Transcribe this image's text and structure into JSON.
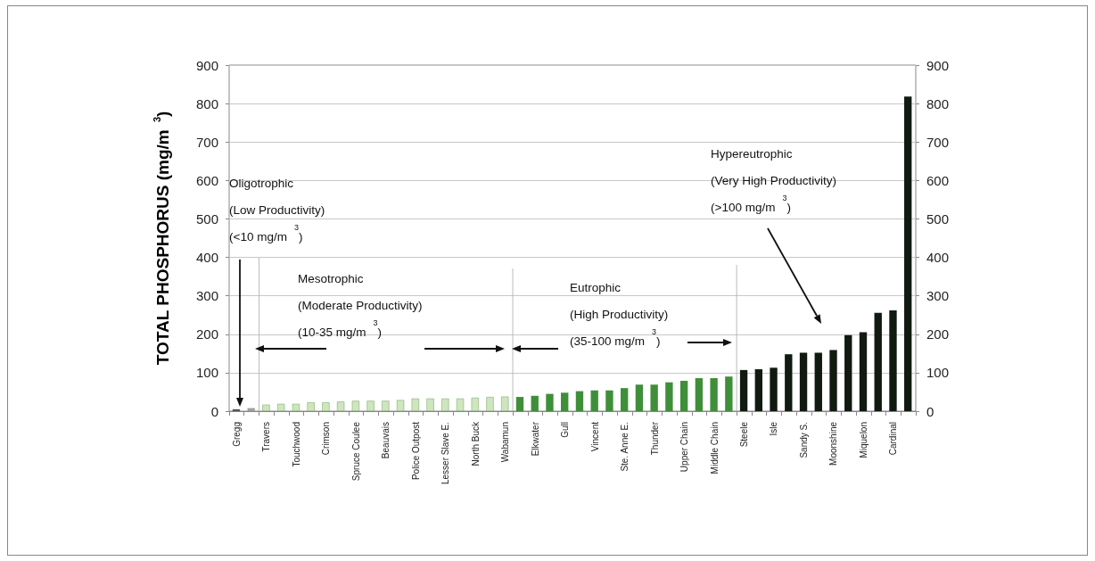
{
  "chart_data": {
    "type": "bar",
    "ylabel": "TOTAL PHOSPHORUS (mg/m$^{3}$)",
    "categories": [
      "Gregg",
      null,
      "Travers",
      null,
      "Touchwood",
      null,
      "Crimson",
      null,
      "Spruce Coulee",
      null,
      "Beauvais",
      null,
      "Police Outpost",
      null,
      "Lesser Slave E.",
      null,
      "North Buck",
      null,
      "Wabamun",
      null,
      "Elkwater",
      null,
      "Gull",
      null,
      "Vincent",
      null,
      "Ste. Anne E.",
      null,
      "Thunder",
      null,
      "Upper Chain",
      null,
      "Middle Chain",
      null,
      "Steele",
      null,
      "Isle",
      null,
      "Sandy S.",
      null,
      "Moonshine",
      null,
      "Miquelon",
      null,
      "Cardinal",
      null
    ],
    "values": [
      5,
      8,
      17,
      19,
      19,
      23,
      23,
      25,
      27,
      27,
      27,
      29,
      33,
      33,
      33,
      33,
      35,
      37,
      38,
      37,
      40,
      45,
      48,
      52,
      54,
      54,
      60,
      69,
      69,
      75,
      79,
      86,
      86,
      90,
      107,
      109,
      113,
      148,
      152,
      152,
      159,
      198,
      205,
      256,
      262,
      818
    ],
    "colors": [
      "#555555",
      "#9aa39a",
      "#cfe5c0",
      "#cfe5c0",
      "#cfe5c0",
      "#cfe5c0",
      "#cfe5c0",
      "#cfe5c0",
      "#cfe5c0",
      "#cfe5c0",
      "#cfe5c0",
      "#cfe5c0",
      "#cfe5c0",
      "#cfe5c0",
      "#cfe5c0",
      "#cfe5c0",
      "#cfe5c0",
      "#cfe5c0",
      "#cfe5c0",
      "#3f8f3a",
      "#3f8f3a",
      "#3f8f3a",
      "#3f8f3a",
      "#3f8f3a",
      "#3f8f3a",
      "#3f8f3a",
      "#3f8f3a",
      "#3f8f3a",
      "#3f8f3a",
      "#3f8f3a",
      "#3f8f3a",
      "#3f8f3a",
      "#3f8f3a",
      "#3f8f3a",
      "#111a11",
      "#111a11",
      "#111a11",
      "#111a11",
      "#111a11",
      "#111a11",
      "#111a11",
      "#111a11",
      "#111a11",
      "#111a11",
      "#111a11",
      "#111a11"
    ],
    "ylim": [
      0,
      900
    ],
    "yticks": [
      0,
      100,
      200,
      300,
      400,
      500,
      600,
      700,
      800,
      900
    ],
    "y2lim": [
      0,
      900
    ],
    "y2ticks": [
      0,
      100,
      200,
      300,
      400,
      500,
      600,
      700,
      800,
      900
    ],
    "grid": "y",
    "annotations": [
      "Oligotrophic\n(Low Productivity)\n(<10 mg/m$^{3}$)",
      "Mesotrophic\n(Moderate Productivity)\n(10-35 mg/m$^{3}$)",
      "Eutrophic\n(High Productivity)\n(35-100 mg/m$^{3}$)",
      "Hypereutrophic\n(Very High Productivity)\n(>100 mg/m$^{3}$)"
    ]
  }
}
